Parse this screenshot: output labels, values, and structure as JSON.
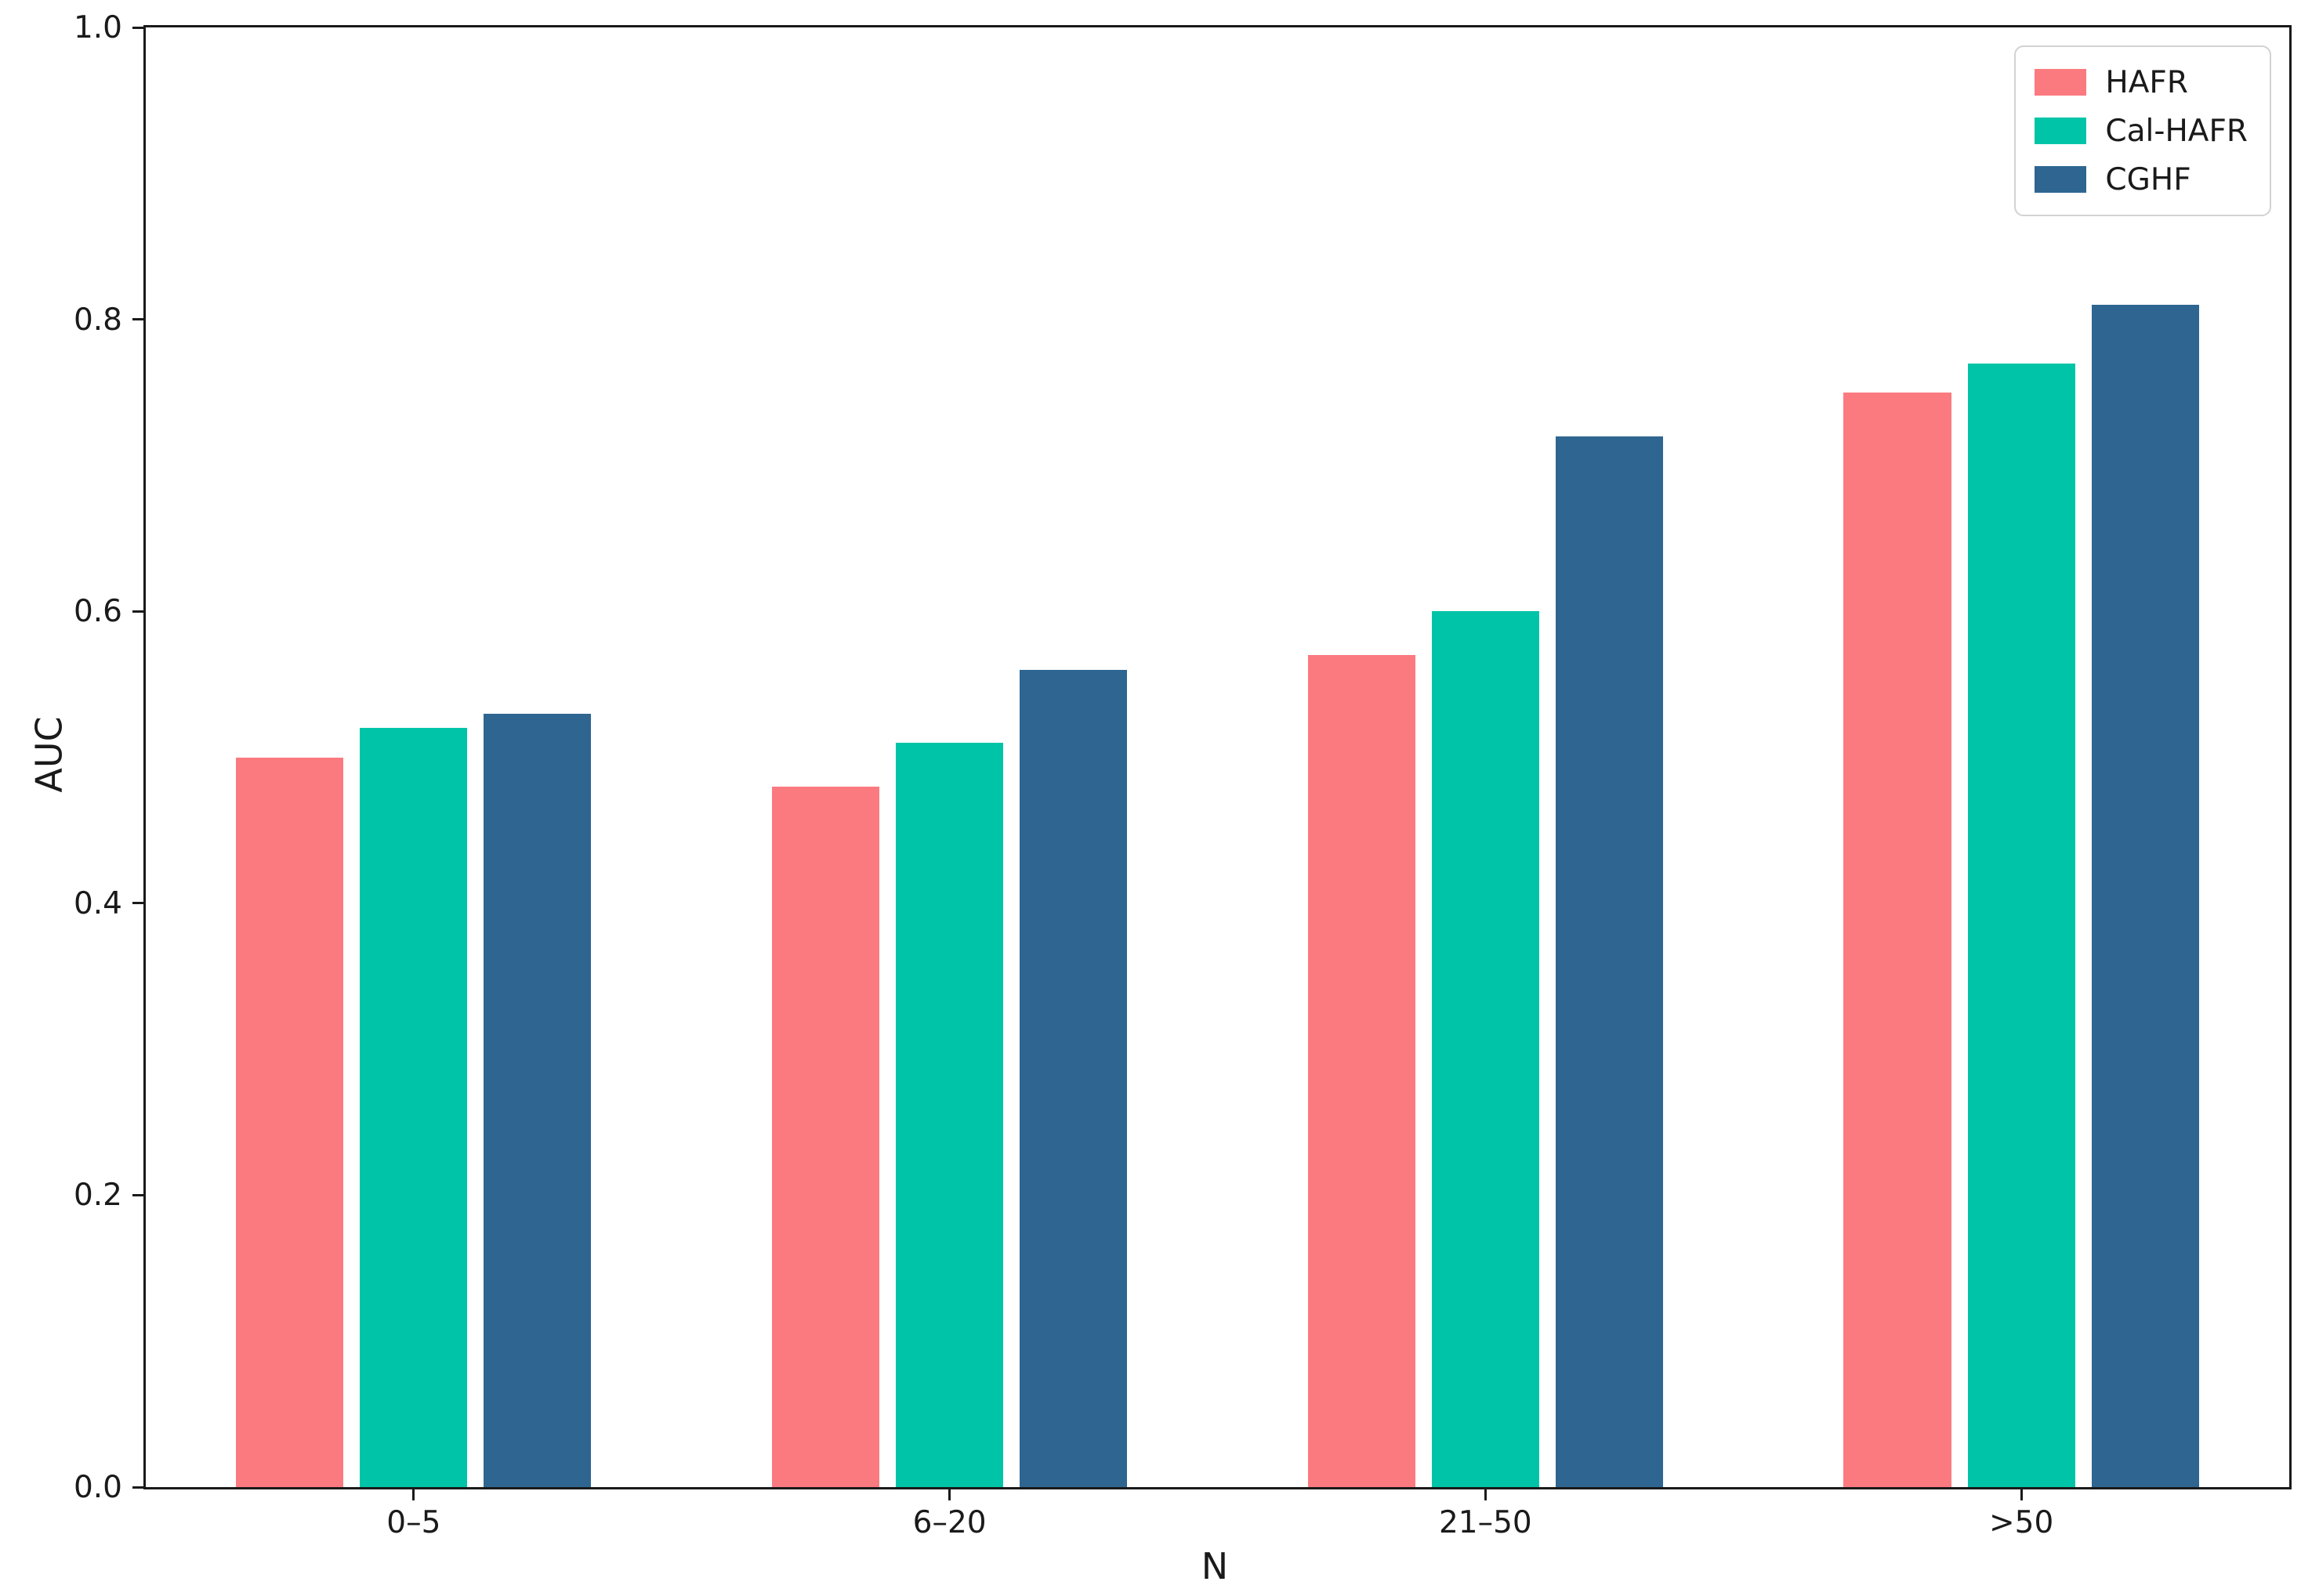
{
  "chart_data": {
    "type": "bar",
    "title": "",
    "xlabel": "N",
    "ylabel": "AUC",
    "categories": [
      "0–5",
      "6–20",
      "21–50",
      ">50"
    ],
    "series": [
      {
        "name": "HAFR",
        "color": "#FB7A7F",
        "values": [
          0.5,
          0.48,
          0.57,
          0.75
        ]
      },
      {
        "name": "Cal-HAFR",
        "color": "#00C4A7",
        "values": [
          0.52,
          0.51,
          0.6,
          0.77
        ]
      },
      {
        "name": "CGHF",
        "color": "#2E6691",
        "values": [
          0.53,
          0.56,
          0.72,
          0.81
        ]
      }
    ],
    "ylim": [
      0.0,
      1.0
    ],
    "yticks": [
      0.0,
      0.2,
      0.4,
      0.6,
      0.8,
      1.0
    ],
    "ytick_labels": [
      "0.0",
      "0.2",
      "0.4",
      "0.6",
      "0.8",
      "1.0"
    ],
    "grid": false,
    "legend_position": "upper right",
    "axis_color": "#1a1a1a",
    "background_color": "#ffffff"
  }
}
